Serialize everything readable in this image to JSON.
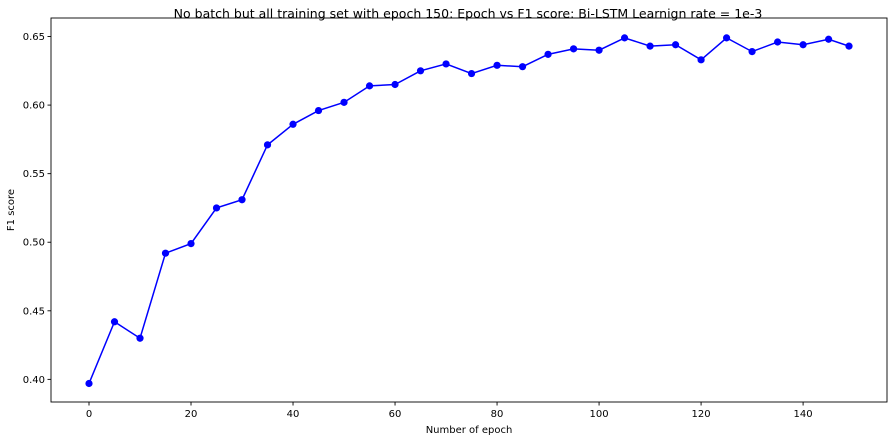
{
  "chart_data": {
    "type": "line",
    "title": "No batch but all training set with epoch 150: Epoch vs F1 score: Bi-LSTM Learnign rate = 1e-3",
    "xlabel": "Number of epoch",
    "ylabel": "F1 score",
    "xlim": [
      -7.45,
      156.45
    ],
    "ylim": [
      0.3835,
      0.6635
    ],
    "xticks": [
      0,
      20,
      40,
      60,
      80,
      100,
      120,
      140
    ],
    "yticks": [
      0.4,
      0.45,
      0.5,
      0.55,
      0.6,
      0.65
    ],
    "ytick_labels": [
      "0.40",
      "0.45",
      "0.50",
      "0.55",
      "0.60",
      "0.65"
    ],
    "grid": false,
    "marker": "circle",
    "colors": {
      "series": "#0000ff",
      "axes": "#000000",
      "background": "#ffffff"
    },
    "series": [
      {
        "x": [
          0,
          5,
          10,
          15,
          20,
          25,
          30,
          35,
          40,
          45,
          50,
          55,
          60,
          65,
          70,
          75,
          80,
          85,
          90,
          95,
          100,
          105,
          110,
          115,
          120,
          125,
          130,
          135,
          140,
          145,
          149
        ],
        "y": [
          0.397,
          0.442,
          0.43,
          0.492,
          0.499,
          0.525,
          0.531,
          0.571,
          0.586,
          0.596,
          0.602,
          0.614,
          0.615,
          0.625,
          0.63,
          0.623,
          0.629,
          0.628,
          0.637,
          0.641,
          0.64,
          0.649,
          0.643,
          0.644,
          0.633,
          0.649,
          0.639,
          0.646,
          0.644,
          0.648,
          0.643
        ]
      }
    ]
  }
}
